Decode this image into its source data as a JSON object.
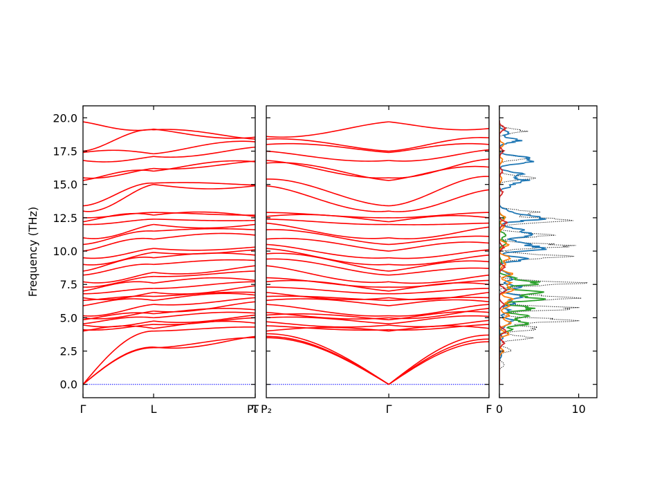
{
  "chart_data": [
    {
      "type": "line",
      "panel": "band-structure-left",
      "ylabel": "Frequency (THz)",
      "ylim": [
        -1.0,
        20.9
      ],
      "yticks": [
        0.0,
        2.5,
        5.0,
        7.5,
        10.0,
        12.5,
        15.0,
        17.5,
        20.0
      ],
      "ytick_labels": [
        "0.0",
        "2.5",
        "5.0",
        "7.5",
        "10.0",
        "12.5",
        "15.0",
        "17.5",
        "20.0"
      ],
      "x_path_labels": [
        "Γ",
        "L",
        "T"
      ],
      "x_positions": [
        0.0,
        0.41,
        1.0
      ],
      "grid": false,
      "series_color": "#ff0000",
      "zero_line_color": "#0000ff",
      "bands": {
        "start_at_gamma": [
          0.0,
          0.0,
          0.0,
          4.0,
          4.1,
          4.45,
          4.55,
          4.85,
          5.0,
          5.15,
          5.9,
          6.3,
          6.5,
          6.8,
          7.0,
          7.3,
          7.7,
          8.2,
          8.5,
          9.0,
          9.5,
          10.0,
          10.5,
          11.0,
          12.0,
          12.2,
          12.5,
          13.0,
          13.4,
          15.3,
          15.5,
          16.8,
          17.4,
          17.5,
          19.7
        ],
        "at_l": [
          2.75,
          2.8,
          4.0,
          4.2,
          4.5,
          4.75,
          5.0,
          5.3,
          5.5,
          6.0,
          6.3,
          6.6,
          6.9,
          7.2,
          7.6,
          8.1,
          8.4,
          9.0,
          9.5,
          9.9,
          10.2,
          10.9,
          11.5,
          12.0,
          12.4,
          12.7,
          12.9,
          15.0,
          15.1,
          16.0,
          16.2,
          17.1,
          17.3,
          19.1,
          19.15
        ],
        "at_t": [
          3.5,
          3.6,
          4.3,
          4.6,
          5.0,
          5.2,
          5.35,
          5.6,
          6.2,
          6.5,
          6.7,
          6.9,
          7.4,
          7.7,
          7.8,
          8.5,
          8.9,
          9.3,
          9.7,
          10.1,
          10.3,
          11.2,
          11.6,
          12.0,
          12.3,
          12.6,
          12.7,
          14.9,
          14.95,
          16.7,
          16.75,
          17.8,
          18.2,
          18.4,
          18.55
        ]
      }
    },
    {
      "type": "line",
      "panel": "band-structure-middle",
      "ylim": [
        -1.0,
        20.9
      ],
      "x_path_labels": [
        "P₀",
        "P₂",
        "Γ",
        "F"
      ],
      "x_positions": [
        0.0,
        0.0,
        0.55,
        1.0
      ],
      "grid": false,
      "series_color": "#ff0000",
      "zero_line_color": "#0000ff",
      "bands": {
        "at_p2": [
          3.5,
          3.6,
          3.8,
          4.0,
          4.4,
          4.7,
          5.0,
          5.2,
          5.4,
          6.0,
          6.3,
          6.6,
          6.9,
          7.3,
          7.7,
          8.0,
          8.9,
          9.4,
          9.8,
          10.2,
          10.5,
          10.9,
          11.6,
          12.1,
          12.4,
          12.6,
          12.9,
          14.9,
          15.4,
          16.6,
          16.8,
          17.5,
          18.0,
          18.4,
          18.6
        ],
        "at_gamma": [
          0.0,
          0.0,
          0.0,
          4.0,
          4.1,
          4.45,
          4.55,
          4.85,
          5.0,
          5.15,
          5.9,
          6.3,
          6.5,
          6.8,
          7.0,
          7.3,
          7.7,
          8.2,
          8.5,
          9.0,
          9.5,
          10.0,
          10.5,
          11.0,
          12.0,
          12.2,
          12.5,
          13.0,
          13.4,
          15.3,
          15.5,
          16.8,
          17.4,
          17.5,
          19.7
        ],
        "at_f": [
          3.2,
          3.4,
          3.7,
          4.2,
          4.5,
          4.8,
          5.1,
          5.4,
          5.7,
          6.0,
          6.2,
          6.5,
          6.9,
          7.2,
          7.5,
          7.8,
          8.2,
          8.7,
          9.2,
          9.7,
          10.1,
          10.6,
          11.1,
          11.8,
          12.1,
          12.5,
          12.9,
          14.6,
          15.6,
          16.3,
          16.9,
          17.6,
          18.0,
          18.5,
          19.2
        ]
      }
    },
    {
      "type": "line",
      "panel": "density-of-states",
      "xlim": [
        0,
        12.3
      ],
      "xticks": [
        0,
        10
      ],
      "xtick_labels": [
        "0",
        "10"
      ],
      "ylim": [
        -1.0,
        20.9
      ],
      "grid": false,
      "series": [
        {
          "color": "#1f77b4",
          "peaks": [
            [
              1.3,
              18.9
            ],
            [
              2.4,
              18.3
            ],
            [
              2.8,
              17.0
            ],
            [
              3.6,
              16.7
            ],
            [
              2.6,
              15.8
            ],
            [
              3.2,
              15.3
            ],
            [
              1.4,
              14.9
            ],
            [
              1.2,
              13.0
            ],
            [
              2.6,
              12.6
            ],
            [
              4.0,
              12.4
            ],
            [
              2.4,
              11.6
            ],
            [
              4.5,
              11.2
            ],
            [
              3.0,
              10.6
            ],
            [
              5.5,
              10.2
            ],
            [
              3.4,
              9.4
            ],
            [
              1.0,
              8.3
            ],
            [
              1.6,
              7.9
            ],
            [
              2.4,
              7.3
            ],
            [
              2.8,
              6.6
            ],
            [
              1.8,
              6.1
            ],
            [
              1.3,
              5.5
            ],
            [
              1.7,
              4.8
            ],
            [
              0.8,
              4.4
            ],
            [
              0.4,
              3.5
            ],
            [
              0.3,
              2.2
            ]
          ]
        },
        {
          "color": "#ff7f0e",
          "peaks": [
            [
              0.5,
              18.0
            ],
            [
              0.4,
              16.8
            ],
            [
              0.3,
              15.4
            ],
            [
              0.8,
              12.5
            ],
            [
              0.6,
              11.8
            ],
            [
              1.1,
              10.5
            ],
            [
              1.3,
              9.5
            ],
            [
              0.7,
              9.0
            ],
            [
              1.5,
              8.3
            ],
            [
              1.4,
              7.6
            ],
            [
              1.7,
              7.1
            ],
            [
              1.5,
              6.4
            ],
            [
              1.2,
              5.9
            ],
            [
              1.2,
              5.2
            ],
            [
              1.4,
              4.6
            ],
            [
              1.1,
              3.8
            ],
            [
              0.5,
              2.5
            ]
          ]
        },
        {
          "color": "#2ca02c",
          "peaks": [
            [
              0.6,
              12.5
            ],
            [
              0.8,
              11.2
            ],
            [
              0.9,
              10.6
            ],
            [
              0.3,
              9.2
            ],
            [
              1.5,
              8.0
            ],
            [
              4.7,
              7.6
            ],
            [
              5.0,
              6.9
            ],
            [
              4.8,
              6.4
            ],
            [
              4.2,
              5.7
            ],
            [
              3.3,
              5.1
            ],
            [
              3.7,
              4.6
            ],
            [
              1.4,
              4.1
            ]
          ]
        },
        {
          "color": "#d62728",
          "peaks": [
            [
              0.7,
              19.2
            ],
            [
              0.5,
              17.5
            ],
            [
              0.4,
              16.0
            ],
            [
              0.4,
              14.4
            ],
            [
              0.9,
              12.1
            ],
            [
              0.5,
              10.3
            ],
            [
              0.6,
              8.8
            ],
            [
              0.9,
              7.1
            ],
            [
              0.6,
              6.0
            ],
            [
              0.9,
              4.0
            ],
            [
              0.6,
              3.1
            ]
          ]
        },
        {
          "color": "#000000",
          "style": "dotted",
          "peaks": [
            [
              3.0,
              19.0
            ],
            [
              3.4,
              17.0
            ],
            [
              4.0,
              15.5
            ],
            [
              4.8,
              12.9
            ],
            [
              10.0,
              12.3
            ],
            [
              6.2,
              11.2
            ],
            [
              8.8,
              10.4
            ],
            [
              7.9,
              9.6
            ],
            [
              9.5,
              7.6
            ],
            [
              9.8,
              6.5
            ],
            [
              9.1,
              5.7
            ],
            [
              8.8,
              4.8
            ],
            [
              4.9,
              4.2
            ],
            [
              3.8,
              3.5
            ],
            [
              1.5,
              2.6
            ],
            [
              0.7,
              1.5
            ]
          ]
        }
      ]
    }
  ],
  "colors": {
    "band": "#ff0000",
    "zero_line": "#0000ff",
    "axis": "#000000",
    "background": "#ffffff"
  }
}
